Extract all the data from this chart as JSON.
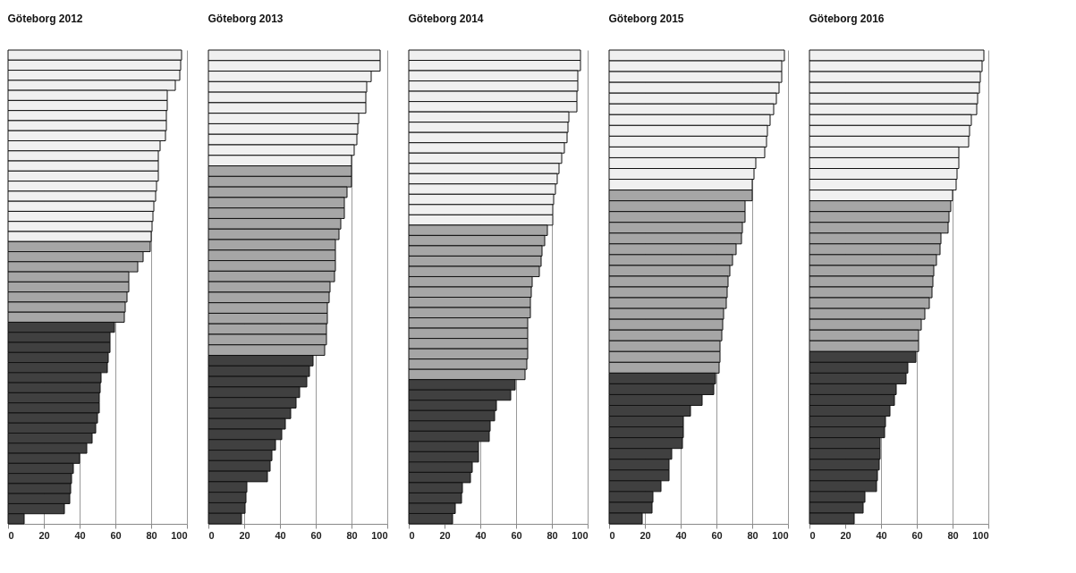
{
  "chart_data": [
    {
      "type": "bar",
      "orientation": "horizontal",
      "title": "Göteborg 2012",
      "categories": [
        null,
        null,
        null,
        null,
        null,
        null,
        null,
        null,
        null,
        null,
        null,
        null,
        null,
        null,
        null,
        null,
        null,
        null,
        null,
        null,
        null,
        null,
        null,
        null,
        null,
        null,
        null,
        null,
        null,
        null,
        null,
        null,
        null,
        null,
        null,
        null,
        null,
        null,
        null,
        null,
        null,
        null,
        null,
        null,
        null,
        null,
        null
      ],
      "values": [
        97,
        96.5,
        96,
        93.5,
        89,
        89,
        88.5,
        88.5,
        88,
        85,
        84,
        84,
        84,
        83,
        82.5,
        81.5,
        81,
        80.5,
        80,
        79.5,
        75.5,
        72.5,
        67.5,
        67.5,
        66.5,
        65.5,
        65,
        59.5,
        57,
        57,
        56,
        55.5,
        52,
        51.5,
        51,
        51,
        50,
        49,
        47,
        44,
        40,
        36.5,
        35.5,
        35,
        34.5,
        31.5,
        9
      ],
      "colors": [
        "#f0f0f0",
        "#f0f0f0",
        "#f0f0f0",
        "#f0f0f0",
        "#f0f0f0",
        "#f0f0f0",
        "#f0f0f0",
        "#f0f0f0",
        "#f0f0f0",
        "#f0f0f0",
        "#f0f0f0",
        "#f0f0f0",
        "#f0f0f0",
        "#f0f0f0",
        "#f0f0f0",
        "#f0f0f0",
        "#f0f0f0",
        "#f0f0f0",
        "#f0f0f0",
        "#a6a6a6",
        "#a6a6a6",
        "#a6a6a6",
        "#a6a6a6",
        "#a6a6a6",
        "#a6a6a6",
        "#a6a6a6",
        "#a6a6a6",
        "#404040",
        "#404040",
        "#404040",
        "#404040",
        "#404040",
        "#404040",
        "#404040",
        "#404040",
        "#404040",
        "#404040",
        "#404040",
        "#404040",
        "#404040",
        "#404040",
        "#404040",
        "#404040",
        "#404040",
        "#404040",
        "#404040",
        "#404040"
      ],
      "xlim": [
        0,
        100
      ],
      "xticks": [
        0,
        20,
        40,
        60,
        80,
        100
      ],
      "grid": "x"
    },
    {
      "type": "bar",
      "orientation": "horizontal",
      "title": "Göteborg 2013",
      "categories": [
        null,
        null,
        null,
        null,
        null,
        null,
        null,
        null,
        null,
        null,
        null,
        null,
        null,
        null,
        null,
        null,
        null,
        null,
        null,
        null,
        null,
        null,
        null,
        null,
        null,
        null,
        null,
        null,
        null,
        null,
        null,
        null,
        null,
        null,
        null,
        null,
        null,
        null,
        null,
        null,
        null,
        null,
        null,
        null,
        null
      ],
      "values": [
        96,
        96,
        91,
        88.5,
        88,
        88,
        84,
        83.5,
        83,
        81.5,
        80,
        80,
        80,
        77.5,
        76,
        76,
        74,
        73,
        71,
        71,
        71,
        70.5,
        68,
        67.5,
        66.5,
        66.5,
        66,
        66,
        65,
        58.5,
        56.5,
        55,
        51,
        49,
        46,
        43,
        41,
        37.5,
        35.5,
        34.5,
        33,
        21.5,
        21,
        20.5,
        18.5
      ],
      "colors": [
        "#f0f0f0",
        "#f0f0f0",
        "#f0f0f0",
        "#f0f0f0",
        "#f0f0f0",
        "#f0f0f0",
        "#f0f0f0",
        "#f0f0f0",
        "#f0f0f0",
        "#f0f0f0",
        "#f0f0f0",
        "#a6a6a6",
        "#a6a6a6",
        "#a6a6a6",
        "#a6a6a6",
        "#a6a6a6",
        "#a6a6a6",
        "#a6a6a6",
        "#a6a6a6",
        "#a6a6a6",
        "#a6a6a6",
        "#a6a6a6",
        "#a6a6a6",
        "#a6a6a6",
        "#a6a6a6",
        "#a6a6a6",
        "#a6a6a6",
        "#a6a6a6",
        "#a6a6a6",
        "#404040",
        "#404040",
        "#404040",
        "#404040",
        "#404040",
        "#404040",
        "#404040",
        "#404040",
        "#404040",
        "#404040",
        "#404040",
        "#404040",
        "#404040",
        "#404040",
        "#404040",
        "#404040"
      ],
      "xlim": [
        0,
        100
      ],
      "xticks": [
        0,
        20,
        40,
        60,
        80,
        100
      ],
      "grid": "x"
    },
    {
      "type": "bar",
      "orientation": "horizontal",
      "title": "Göteborg 2014",
      "categories": [
        null,
        null,
        null,
        null,
        null,
        null,
        null,
        null,
        null,
        null,
        null,
        null,
        null,
        null,
        null,
        null,
        null,
        null,
        null,
        null,
        null,
        null,
        null,
        null,
        null,
        null,
        null,
        null,
        null,
        null,
        null,
        null,
        null,
        null,
        null,
        null,
        null,
        null,
        null,
        null,
        null,
        null,
        null,
        null,
        null,
        null
      ],
      "values": [
        96,
        96,
        94.5,
        94.5,
        94,
        94,
        89.5,
        89,
        88.5,
        87,
        85.5,
        84,
        83,
        82,
        81,
        80.5,
        80.5,
        77.5,
        76,
        74.5,
        74,
        73,
        69,
        68.5,
        68,
        68,
        66.5,
        66.5,
        66.5,
        66.5,
        66,
        65,
        59.5,
        57,
        49,
        48,
        45.5,
        45,
        39,
        39,
        35.5,
        34.5,
        30,
        29.5,
        26,
        24.5
      ],
      "colors": [
        "#f0f0f0",
        "#f0f0f0",
        "#f0f0f0",
        "#f0f0f0",
        "#f0f0f0",
        "#f0f0f0",
        "#f0f0f0",
        "#f0f0f0",
        "#f0f0f0",
        "#f0f0f0",
        "#f0f0f0",
        "#f0f0f0",
        "#f0f0f0",
        "#f0f0f0",
        "#f0f0f0",
        "#f0f0f0",
        "#f0f0f0",
        "#a6a6a6",
        "#a6a6a6",
        "#a6a6a6",
        "#a6a6a6",
        "#a6a6a6",
        "#a6a6a6",
        "#a6a6a6",
        "#a6a6a6",
        "#a6a6a6",
        "#a6a6a6",
        "#a6a6a6",
        "#a6a6a6",
        "#a6a6a6",
        "#a6a6a6",
        "#a6a6a6",
        "#404040",
        "#404040",
        "#404040",
        "#404040",
        "#404040",
        "#404040",
        "#404040",
        "#404040",
        "#404040",
        "#404040",
        "#404040",
        "#404040",
        "#404040",
        "#404040"
      ],
      "xlim": [
        0,
        100
      ],
      "xticks": [
        0,
        20,
        40,
        60,
        80,
        100
      ],
      "grid": "x"
    },
    {
      "type": "bar",
      "orientation": "horizontal",
      "title": "Göteborg 2015",
      "categories": [
        null,
        null,
        null,
        null,
        null,
        null,
        null,
        null,
        null,
        null,
        null,
        null,
        null,
        null,
        null,
        null,
        null,
        null,
        null,
        null,
        null,
        null,
        null,
        null,
        null,
        null,
        null,
        null,
        null,
        null,
        null,
        null,
        null,
        null,
        null,
        null,
        null,
        null,
        null,
        null,
        null,
        null,
        null,
        null
      ],
      "values": [
        98,
        96.5,
        96.5,
        95,
        93.5,
        92,
        90,
        88.5,
        88,
        87,
        82,
        81,
        80,
        80,
        76,
        76,
        74.5,
        74,
        71,
        69,
        67.5,
        66.5,
        66,
        65.5,
        64,
        63.5,
        63,
        62,
        62,
        61.5,
        59.5,
        58.5,
        52,
        45.5,
        41.5,
        41.5,
        41,
        35,
        33.5,
        33.5,
        29,
        24.5,
        24,
        18.5
      ],
      "colors": [
        "#f0f0f0",
        "#f0f0f0",
        "#f0f0f0",
        "#f0f0f0",
        "#f0f0f0",
        "#f0f0f0",
        "#f0f0f0",
        "#f0f0f0",
        "#f0f0f0",
        "#f0f0f0",
        "#f0f0f0",
        "#f0f0f0",
        "#f0f0f0",
        "#a6a6a6",
        "#a6a6a6",
        "#a6a6a6",
        "#a6a6a6",
        "#a6a6a6",
        "#a6a6a6",
        "#a6a6a6",
        "#a6a6a6",
        "#a6a6a6",
        "#a6a6a6",
        "#a6a6a6",
        "#a6a6a6",
        "#a6a6a6",
        "#a6a6a6",
        "#a6a6a6",
        "#a6a6a6",
        "#a6a6a6",
        "#404040",
        "#404040",
        "#404040",
        "#404040",
        "#404040",
        "#404040",
        "#404040",
        "#404040",
        "#404040",
        "#404040",
        "#404040",
        "#404040",
        "#404040",
        "#404040"
      ],
      "xlim": [
        0,
        100
      ],
      "xticks": [
        0,
        20,
        40,
        60,
        80,
        100
      ],
      "grid": "x"
    },
    {
      "type": "bar",
      "orientation": "horizontal",
      "title": "Göteborg 2016",
      "categories": [
        null,
        null,
        null,
        null,
        null,
        null,
        null,
        null,
        null,
        null,
        null,
        null,
        null,
        null,
        null,
        null,
        null,
        null,
        null,
        null,
        null,
        null,
        null,
        null,
        null,
        null,
        null,
        null,
        null,
        null,
        null,
        null,
        null,
        null,
        null,
        null,
        null,
        null,
        null,
        null,
        null,
        null,
        null,
        null
      ],
      "values": [
        97.5,
        96.5,
        95.5,
        95,
        94,
        93.5,
        90.5,
        89.5,
        89,
        83.5,
        83.5,
        82.5,
        82,
        80,
        79,
        78,
        77.5,
        73.5,
        73,
        71,
        69.5,
        69,
        68.5,
        67,
        64.5,
        62.5,
        61,
        61,
        59.5,
        55,
        54,
        48.5,
        47.5,
        45,
        42.5,
        42,
        39.5,
        39.5,
        39,
        38,
        37.5,
        31,
        30,
        25
      ],
      "colors": [
        "#f0f0f0",
        "#f0f0f0",
        "#f0f0f0",
        "#f0f0f0",
        "#f0f0f0",
        "#f0f0f0",
        "#f0f0f0",
        "#f0f0f0",
        "#f0f0f0",
        "#f0f0f0",
        "#f0f0f0",
        "#f0f0f0",
        "#f0f0f0",
        "#f0f0f0",
        "#a6a6a6",
        "#a6a6a6",
        "#a6a6a6",
        "#a6a6a6",
        "#a6a6a6",
        "#a6a6a6",
        "#a6a6a6",
        "#a6a6a6",
        "#a6a6a6",
        "#a6a6a6",
        "#a6a6a6",
        "#a6a6a6",
        "#a6a6a6",
        "#a6a6a6",
        "#404040",
        "#404040",
        "#404040",
        "#404040",
        "#404040",
        "#404040",
        "#404040",
        "#404040",
        "#404040",
        "#404040",
        "#404040",
        "#404040",
        "#404040",
        "#404040",
        "#404040",
        "#404040"
      ],
      "xlim": [
        0,
        100
      ],
      "xticks": [
        0,
        20,
        40,
        60,
        80,
        100
      ],
      "grid": "x"
    }
  ]
}
